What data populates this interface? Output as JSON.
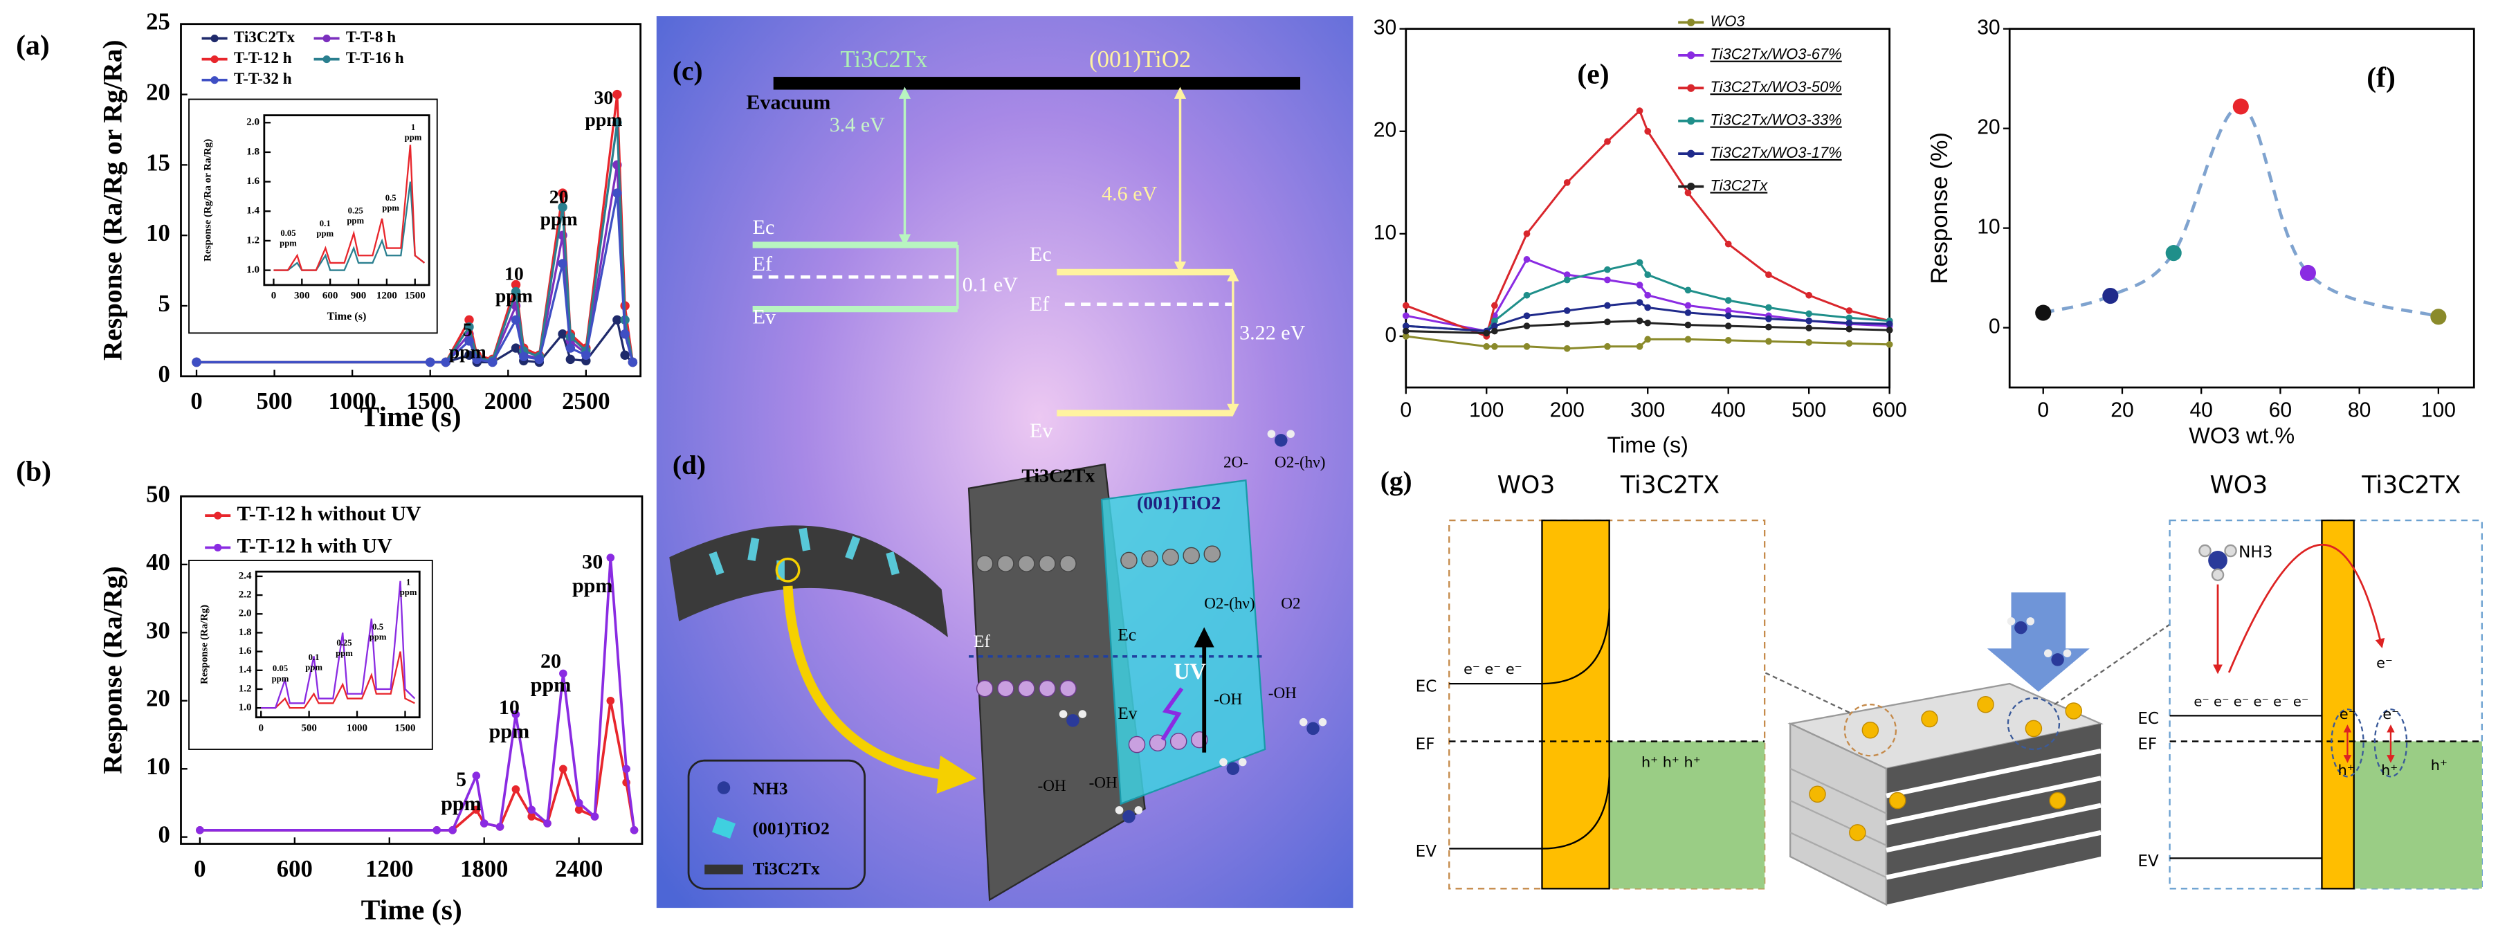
{
  "chart_data": [
    {
      "type": "line",
      "panel_label": "(a)",
      "xlabel": "Time (s)",
      "ylabel": "Response (Ra/Rg or Rg/Ra)",
      "xlim": [
        -100,
        2850
      ],
      "xticks": [
        0,
        500,
        1000,
        1500,
        2000,
        2500
      ],
      "ylim": [
        0,
        25
      ],
      "yticks": [
        0,
        5,
        10,
        15,
        20,
        25
      ],
      "markers": true,
      "x": [
        0,
        1500,
        1600,
        1750,
        1800,
        1900,
        2050,
        2100,
        2200,
        2350,
        2400,
        2500,
        2700,
        2750,
        2800
      ],
      "series": [
        {
          "name": "Ti3C2Tx",
          "color": "#1f2a6b",
          "values": [
            1,
            1,
            1,
            1.5,
            1,
            1,
            2,
            1.1,
            1,
            3,
            1.2,
            1.1,
            4,
            1.5,
            1
          ]
        },
        {
          "name": "T-T-8 h",
          "color": "#7b2fbe",
          "values": [
            1,
            1,
            1,
            3,
            1.2,
            1.1,
            5,
            1.5,
            1.3,
            10,
            2.5,
            1.6,
            15,
            3,
            1
          ]
        },
        {
          "name": "T-T-12 h",
          "color": "#e8262c",
          "values": [
            1,
            1,
            1,
            4,
            1.5,
            1.2,
            6.5,
            2,
            1.5,
            13,
            3,
            2,
            20,
            5,
            1
          ]
        },
        {
          "name": "T-T-16 h",
          "color": "#2a7f8f",
          "values": [
            1,
            1,
            1,
            3.5,
            1.3,
            1.1,
            6,
            1.8,
            1.4,
            12,
            2.8,
            1.8,
            18,
            4,
            1
          ]
        },
        {
          "name": "T-T-32 h",
          "color": "#3f4fc4",
          "values": [
            1,
            1,
            1,
            2.5,
            1.2,
            1,
            4,
            1.4,
            1.2,
            8,
            2,
            1.5,
            13,
            3,
            1
          ]
        }
      ],
      "annotations": [
        [
          "5",
          "ppm"
        ],
        [
          "10",
          "ppm"
        ],
        [
          "20",
          "ppm"
        ],
        [
          "30",
          "ppm"
        ]
      ]
    },
    {
      "type": "line",
      "xlabel": "Time (s)",
      "ylabel": "Response (Rg/Ra or Ra/Rg)",
      "xlim": [
        -100,
        1650
      ],
      "xticks": [
        0,
        300,
        600,
        900,
        1200,
        1500
      ],
      "ylim": [
        0.9,
        2.05
      ],
      "yticks": [
        {
          "value": 1,
          "label": "1.0"
        },
        1.2,
        1.4,
        1.6,
        1.8,
        {
          "value": 2,
          "label": "2.0"
        }
      ],
      "x": [
        0,
        150,
        250,
        300,
        450,
        550,
        600,
        750,
        850,
        900,
        1050,
        1150,
        1200,
        1350,
        1450,
        1500,
        1600
      ],
      "series": [
        {
          "color": "#2a7f8f",
          "values": [
            1,
            1,
            1.05,
            1,
            1,
            1.1,
            1,
            1,
            1.15,
            1.05,
            1.05,
            1.2,
            1.1,
            1.1,
            1.6,
            1.1,
            1.05
          ]
        },
        {
          "color": "#e8262c",
          "values": [
            1,
            1,
            1.1,
            1,
            1,
            1.15,
            1.05,
            1.05,
            1.25,
            1.1,
            1.1,
            1.35,
            1.15,
            1.15,
            1.85,
            1.1,
            1.05
          ]
        }
      ],
      "annotations": [
        [
          "0.05",
          "ppm"
        ],
        [
          "0.1",
          "ppm"
        ],
        [
          "0.25",
          "ppm"
        ],
        [
          "0.5",
          "ppm"
        ],
        [
          "1",
          "ppm"
        ]
      ]
    },
    {
      "type": "line",
      "panel_label": "(b)",
      "xlabel": "Time (s)",
      "ylabel": "Response (Ra/Rg)",
      "xlim": [
        -120,
        2800
      ],
      "xticks": [
        0,
        600,
        1200,
        1800,
        2400
      ],
      "ylim": [
        -1,
        50
      ],
      "yticks": [
        0,
        10,
        20,
        30,
        40,
        50
      ],
      "markers": true,
      "x": [
        0,
        1500,
        1600,
        1750,
        1800,
        1900,
        2000,
        2100,
        2200,
        2300,
        2400,
        2500,
        2600,
        2700,
        2750
      ],
      "series": [
        {
          "name": "T-T-12 h without UV",
          "color": "#e8262c",
          "values": [
            1,
            1,
            1,
            4,
            2,
            1.5,
            7,
            3,
            2,
            10,
            4,
            3,
            20,
            8,
            1
          ]
        },
        {
          "name": "T-T-12 h with UV",
          "color": "#8a2be2",
          "values": [
            1,
            1,
            1,
            9,
            2,
            1.5,
            18,
            4,
            2,
            24,
            5,
            3,
            41,
            10,
            1
          ]
        }
      ],
      "annotations": [
        [
          "5",
          "ppm"
        ],
        [
          "10",
          "ppm"
        ],
        [
          "20",
          "ppm"
        ],
        [
          "30",
          "ppm"
        ]
      ]
    },
    {
      "type": "line",
      "ylabel": "Response (Ra/Rg)",
      "xlim": [
        -50,
        1650
      ],
      "xticks": [
        0,
        500,
        1000,
        1500
      ],
      "ylim": [
        0.9,
        2.45
      ],
      "yticks": [
        {
          "value": 1,
          "label": "1.0"
        },
        1.2,
        1.4,
        1.6,
        1.8,
        {
          "value": 2,
          "label": "2.0"
        },
        2.2,
        2.4
      ],
      "x": [
        0,
        150,
        250,
        300,
        450,
        550,
        600,
        750,
        850,
        900,
        1050,
        1150,
        1200,
        1350,
        1450,
        1500,
        1600
      ],
      "series": [
        {
          "color": "#e8262c",
          "values": [
            1,
            1,
            1.1,
            1,
            1,
            1.15,
            1.05,
            1.05,
            1.25,
            1.1,
            1.1,
            1.35,
            1.15,
            1.15,
            1.6,
            1.1,
            1.05
          ]
        },
        {
          "color": "#8a2be2",
          "values": [
            1,
            1,
            1.3,
            1.05,
            1.05,
            1.55,
            1.1,
            1.1,
            1.8,
            1.15,
            1.15,
            1.95,
            1.2,
            1.2,
            2.35,
            1.2,
            1.1
          ]
        }
      ],
      "annotations": [
        [
          "0.05",
          "ppm"
        ],
        [
          "0.1",
          "ppm"
        ],
        [
          "0.25",
          "ppm"
        ],
        [
          "0.5",
          "ppm"
        ],
        [
          "1",
          "ppm"
        ]
      ]
    },
    {
      "type": "line",
      "panel_label": "(e)",
      "xlabel": "Time (s)",
      "xlim": [
        0,
        600
      ],
      "xticks": [
        0,
        100,
        200,
        300,
        400,
        500,
        600
      ],
      "ylim": [
        -5,
        30
      ],
      "yticks": [
        0,
        10,
        20,
        30
      ],
      "markers": true,
      "x": [
        0,
        100,
        110,
        150,
        200,
        250,
        290,
        300,
        350,
        400,
        450,
        500,
        550,
        600
      ],
      "series": [
        {
          "name": "WO3",
          "color": "#8a8a2a",
          "values": [
            0,
            -1,
            -1,
            -1,
            -1.2,
            -1,
            -1,
            -0.3,
            -0.3,
            -0.4,
            -0.5,
            -0.6,
            -0.7,
            -0.8
          ]
        },
        {
          "name": "Ti3C2Tx/WO3-67%",
          "color": "#8a2be2",
          "values": [
            2,
            0.5,
            2,
            7.5,
            6,
            5.5,
            5,
            4,
            3,
            2.5,
            2,
            1.5,
            1.2,
            1
          ]
        },
        {
          "name": "Ti3C2Tx/WO3-50%",
          "color": "#d9262c",
          "values": [
            3,
            0,
            3,
            10,
            15,
            19,
            22,
            20,
            14,
            9,
            6,
            4,
            2.5,
            1.5
          ]
        },
        {
          "name": "Ti3C2Tx/WO3-33%",
          "color": "#1f8f8a",
          "values": [
            1,
            0.5,
            1.5,
            4,
            5.5,
            6.5,
            7.2,
            6,
            4.5,
            3.5,
            2.8,
            2.2,
            1.8,
            1.5
          ]
        },
        {
          "name": "Ti3C2Tx/WO3-17%",
          "color": "#1f2a8b",
          "values": [
            1,
            0.5,
            1,
            2,
            2.5,
            3,
            3.3,
            2.8,
            2.3,
            2,
            1.7,
            1.5,
            1.3,
            1.2
          ]
        },
        {
          "name": "Ti3C2Tx",
          "color": "#222222",
          "values": [
            0.5,
            0.3,
            0.5,
            1,
            1.2,
            1.4,
            1.5,
            1.3,
            1.1,
            1,
            0.9,
            0.8,
            0.7,
            0.6
          ]
        }
      ]
    },
    {
      "type": "scatter",
      "panel_label": "(f)",
      "xlabel": "WO3 wt.%",
      "ylabel": "Response (%)",
      "xlim": [
        -8.5,
        109
      ],
      "xticks": [
        0,
        20,
        40,
        60,
        80,
        100
      ],
      "ylim": [
        -6,
        30
      ],
      "yticks": [
        0,
        10,
        20,
        30
      ],
      "x": [
        0,
        17,
        33,
        50,
        67,
        100
      ],
      "values": [
        1.5,
        3.2,
        7.5,
        22.2,
        5.5,
        1.1
      ],
      "colors": [
        "#111111",
        "#1f2a8b",
        "#1f8f8a",
        "#e8262c",
        "#8a2be2",
        "#8a8a2a"
      ],
      "line_color": "#7fa3cf"
    }
  ],
  "diagram_c": {
    "panel_label": "(c)",
    "left_material": "Ti3C2Tx",
    "right_material": "(001)TiO2",
    "vacuum_level": "Evacuum",
    "left_work_function": "3.4 eV",
    "right_work_function": "4.6 eV",
    "left_levels": [
      "Ec",
      "Ef",
      "Ev"
    ],
    "left_gap": "0.1 eV",
    "right_levels": [
      "Ec",
      "Ef",
      "Ev"
    ],
    "right_gap": "3.22 eV"
  },
  "diagram_d": {
    "panel_label": "(d)",
    "slab_label": "Ti3C2Tx",
    "layer_label": "(001)TiO2",
    "uv": "UV",
    "fermi": "Ef",
    "conduction": "Ec",
    "valence": "Ev",
    "species": [
      "2O-",
      "O2-(hν)",
      "O2-(hν)",
      "O2",
      "-OH",
      "-OH",
      "-OH",
      "-OH"
    ],
    "legend": [
      "NH3",
      "(001)TiO2",
      "Ti3C2Tx"
    ]
  },
  "diagram_g": {
    "panel_label": "(g)",
    "left": {
      "materials": [
        "WO3",
        "Ti3C2TX"
      ],
      "levels": [
        "EC",
        "EF",
        "EV"
      ],
      "electrons": "e⁻ e⁻ e⁻",
      "holes": "h⁺ h⁺ h⁺"
    },
    "right": {
      "materials": [
        "WO3",
        "Ti3C2TX"
      ],
      "gas": "NH3",
      "levels": [
        "EC",
        "EF",
        "EV"
      ],
      "transfer_electron": "e⁻",
      "electrons": "e⁻ e⁻ e⁻ e⁻ e⁻ e⁻",
      "local_electrons": [
        "e⁻",
        "e⁻"
      ],
      "holes": [
        "h⁺",
        "h⁺",
        "h⁺"
      ]
    }
  }
}
